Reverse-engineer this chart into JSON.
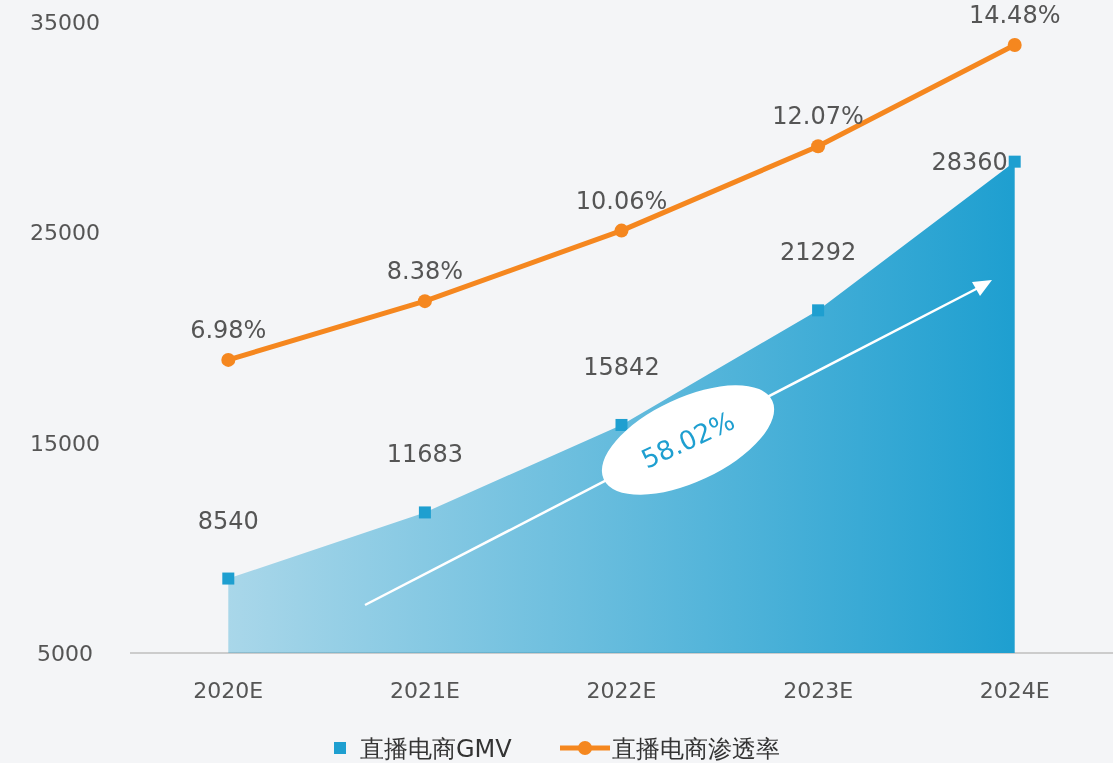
{
  "chart_data": {
    "type": "area",
    "categories": [
      "2020E",
      "2021E",
      "2022E",
      "2023E",
      "2024E"
    ],
    "series": [
      {
        "name": "直播电商GMV",
        "color": "#1e9fd0",
        "marker": "square",
        "values": [
          8540,
          11683,
          15842,
          21292,
          28360
        ]
      },
      {
        "name": "直播电商渗透率",
        "type": "line",
        "axis": "y2",
        "color": "#f5871f",
        "marker": "circle",
        "values": [
          6.98,
          8.38,
          10.06,
          12.07,
          14.48
        ],
        "value_labels": [
          "6.98%",
          "8.38%",
          "10.06%",
          "12.07%",
          "14.48%"
        ]
      }
    ],
    "ylim": [
      5000,
      35000
    ],
    "yticks": [
      5000,
      15000,
      25000,
      35000
    ],
    "data_labels": true,
    "annotations": [
      "58.02%"
    ],
    "legend": "bottom",
    "grid": false
  }
}
